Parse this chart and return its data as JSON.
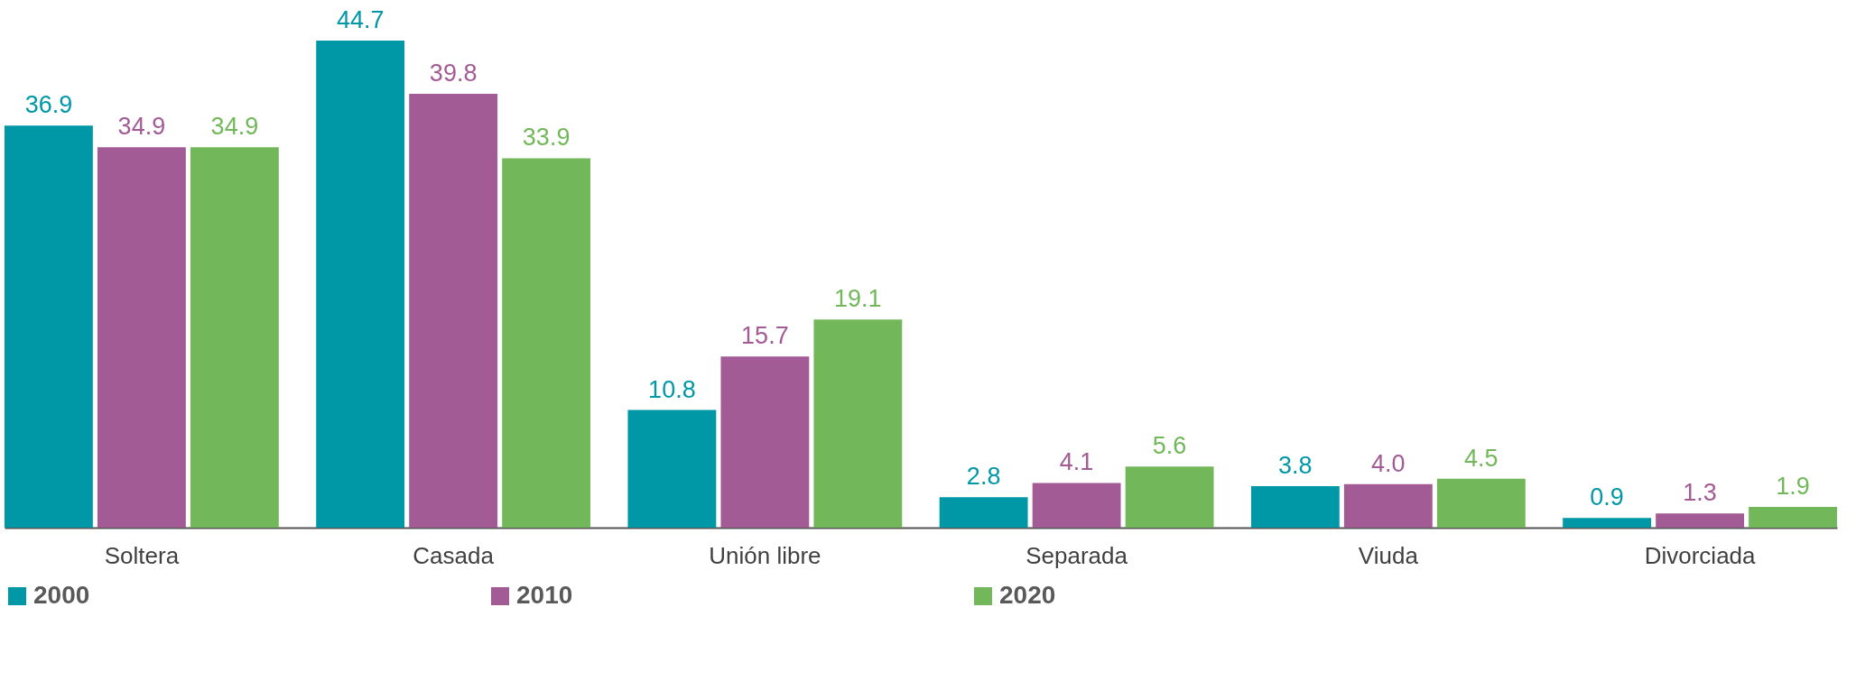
{
  "chart_data": {
    "type": "bar",
    "categories": [
      "Soltera",
      "Casada",
      "Unión libre",
      "Separada",
      "Viuda",
      "Divorciada"
    ],
    "series": [
      {
        "name": "2000",
        "color": "#0097a7",
        "values": [
          36.9,
          44.7,
          10.8,
          2.8,
          3.8,
          0.9
        ]
      },
      {
        "name": "2010",
        "color": "#a25b94",
        "values": [
          34.9,
          39.8,
          15.7,
          4.1,
          4.0,
          1.3
        ],
        "value_labels": [
          "34.9",
          "39.8",
          "15.7",
          "4.1",
          "4.0",
          "1.3"
        ]
      },
      {
        "name": "2020",
        "color": "#72b85a",
        "values": [
          34.9,
          33.9,
          19.1,
          5.6,
          4.5,
          1.9
        ]
      }
    ],
    "data_labels": true,
    "legend": "bottom",
    "grid": false
  }
}
